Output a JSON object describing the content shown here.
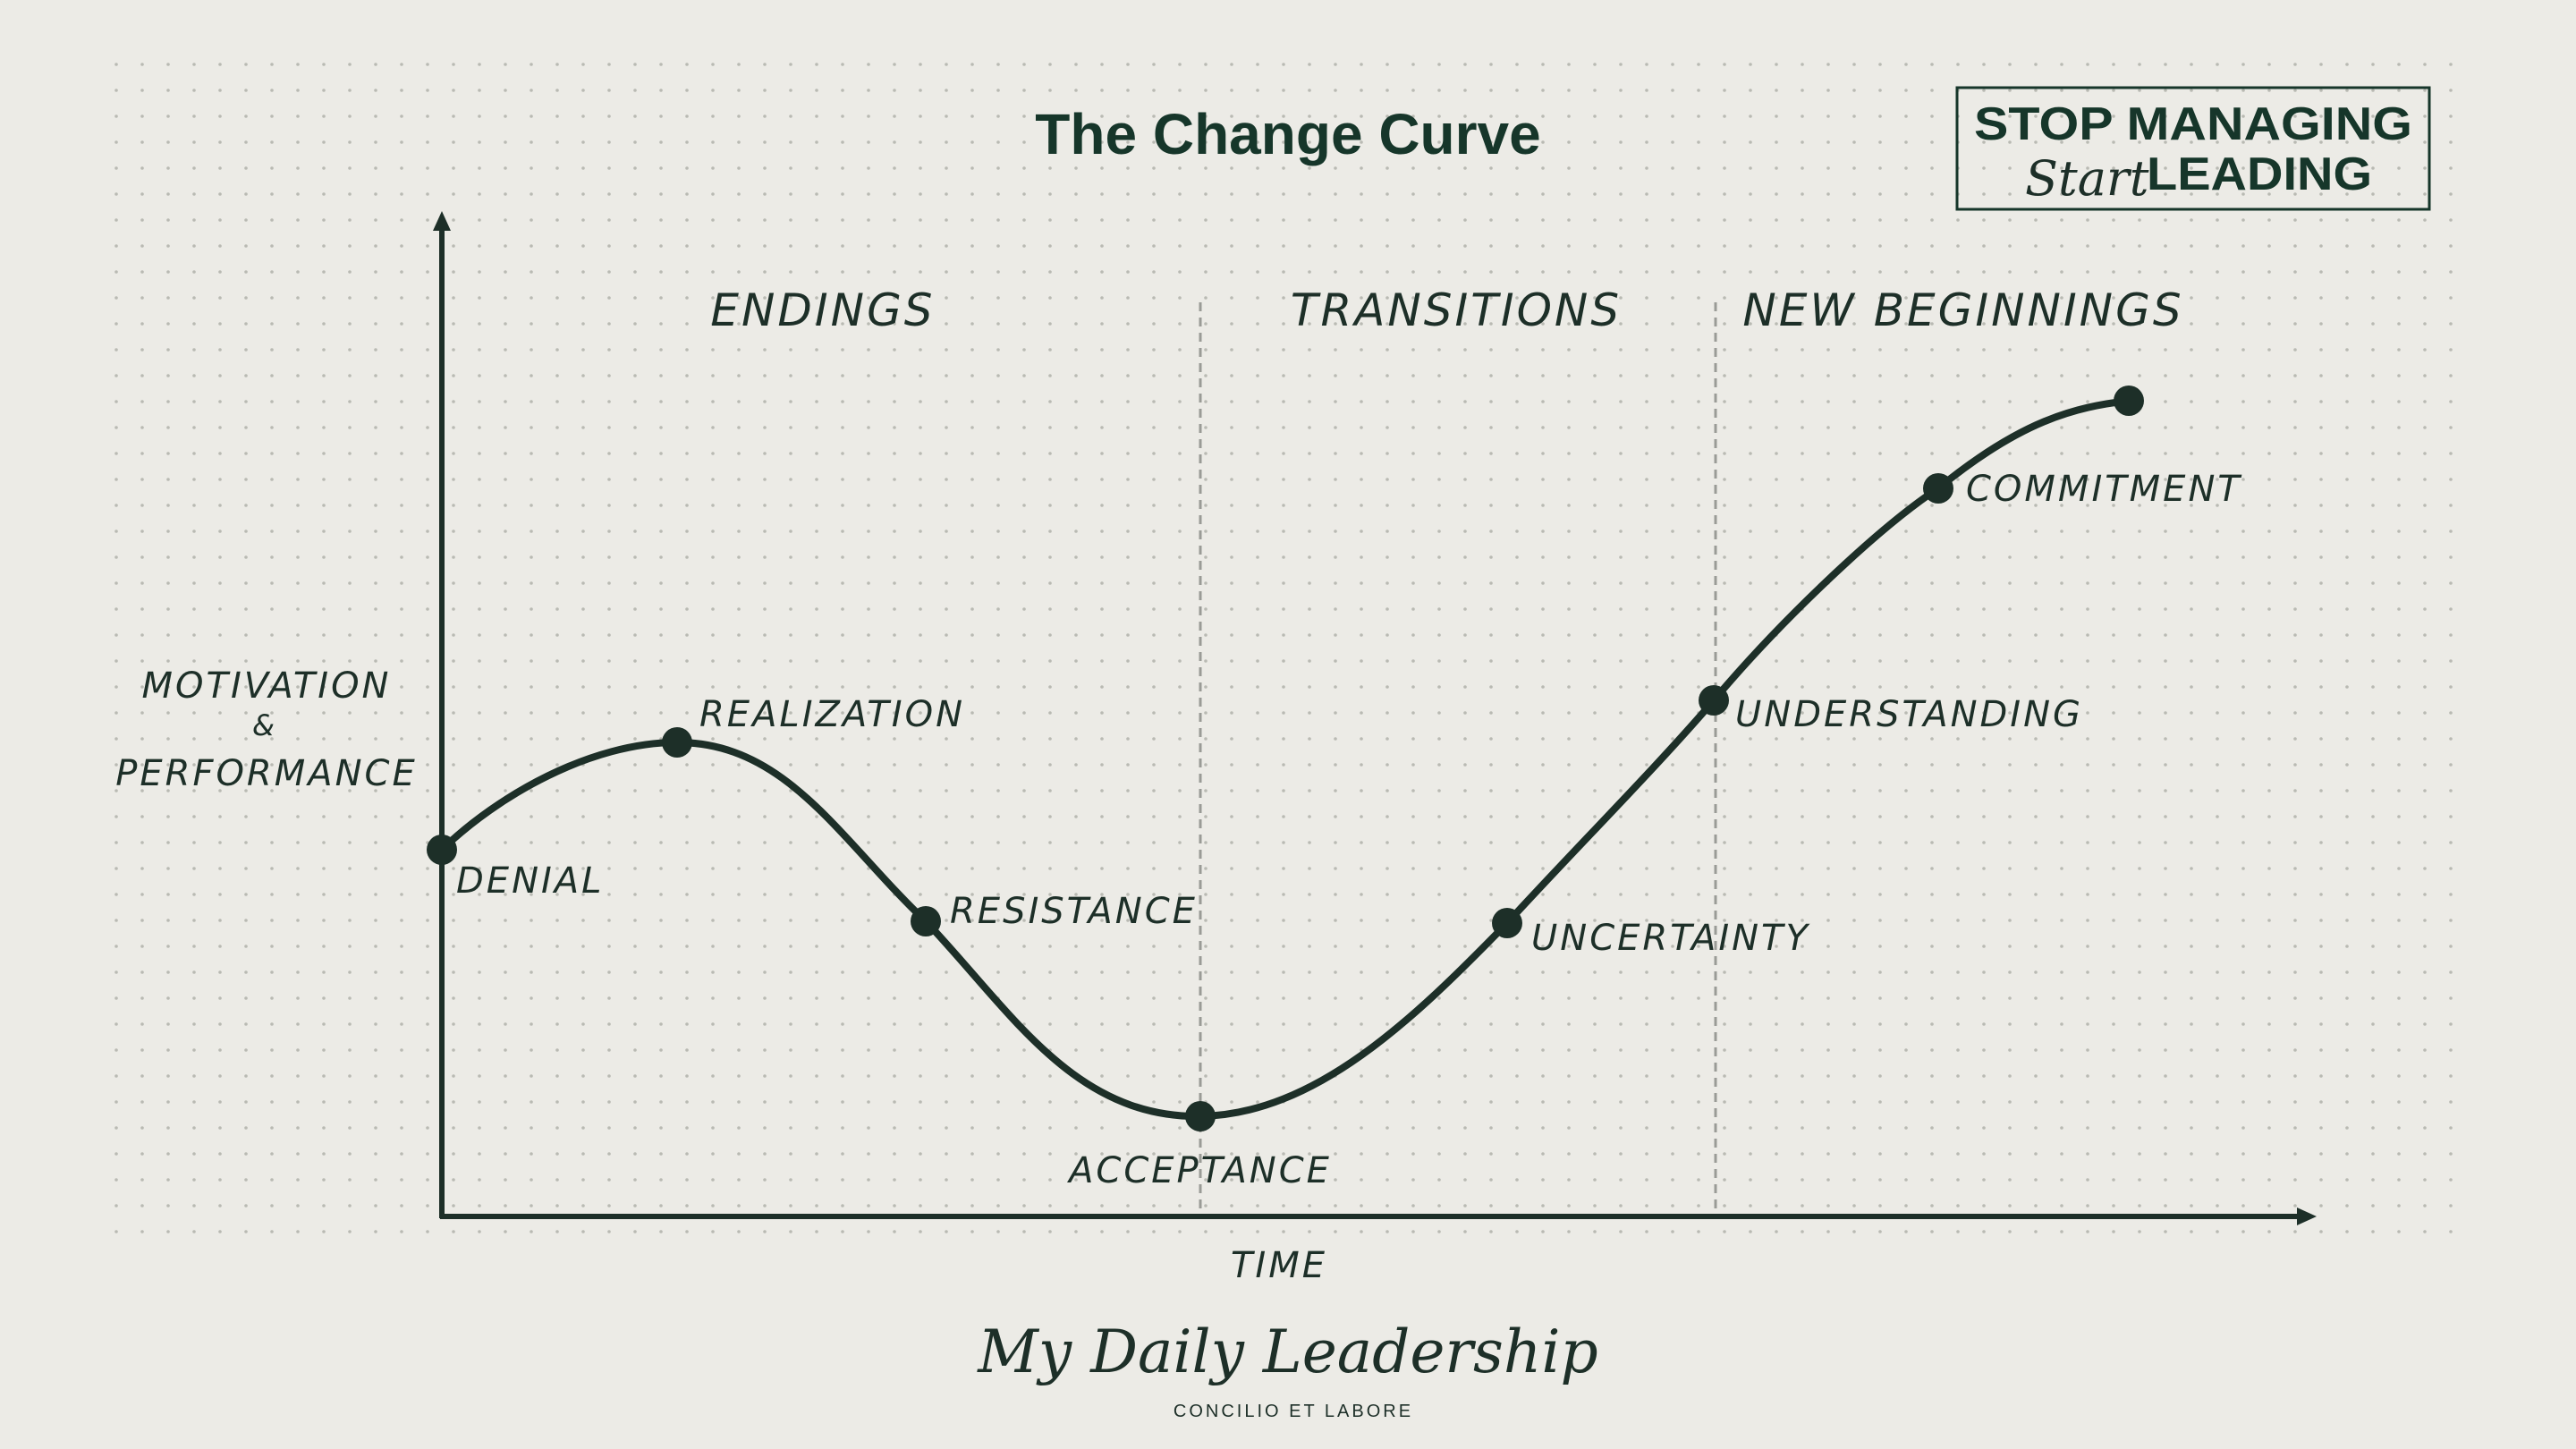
{
  "title": "The Change Curve",
  "brand_logo": {
    "line1": "STOP MANAGING",
    "script": "Start",
    "line2": "LEADING"
  },
  "y_axis_label": {
    "line1": "MOTIVATION",
    "line2": "&",
    "line3": "PERFORMANCE"
  },
  "x_axis_label": "TIME",
  "phases": [
    "ENDINGS",
    "TRANSITIONS",
    "NEW BEGINNINGS"
  ],
  "stages": [
    {
      "label": "DENIAL"
    },
    {
      "label": "REALIZATION"
    },
    {
      "label": "RESISTANCE"
    },
    {
      "label": "ACCEPTANCE"
    },
    {
      "label": "UNCERTAINTY"
    },
    {
      "label": "UNDERSTANDING"
    },
    {
      "label": "COMMITMENT"
    }
  ],
  "footer": {
    "script": "My Daily Leadership",
    "tagline": "CONCILIO ET LABORE"
  },
  "colors": {
    "background": "#ecebe6",
    "ink": "#1d2f28",
    "accent": "#16362a",
    "grid_dot": "#b9bab3",
    "divider": "#9a9b96"
  }
}
